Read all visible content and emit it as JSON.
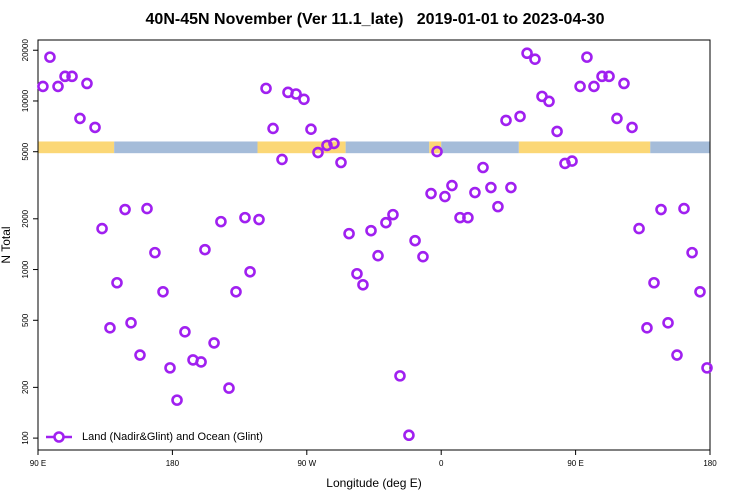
{
  "chart_data": {
    "type": "scatter",
    "title": "40N-45N November (Ver 11.1_late)   2019-01-01 to 2023-04-30",
    "xlabel": "Longitude (deg E)",
    "ylabel": "N Total",
    "xlim": [
      90,
      540
    ],
    "xticks": [
      {
        "value": 90,
        "label": "90 E"
      },
      180,
      {
        "value": 270,
        "label": "90 W"
      },
      {
        "value": 360,
        "label": "0"
      },
      {
        "value": 450,
        "label": "90 E"
      },
      {
        "value": 540,
        "label": "180"
      }
    ],
    "ylim": [
      85,
      23000
    ],
    "log_y": true,
    "yticks": [
      100,
      200,
      500,
      1000,
      2000,
      5000,
      10000,
      20000
    ],
    "legend": "bottom-left",
    "band_ylim": [
      4900,
      5750
    ],
    "band": [
      {
        "x0": 90,
        "x1": 141,
        "color": "#fbd776"
      },
      {
        "x0": 141,
        "x1": 237,
        "color": "#a5bcd9"
      },
      {
        "x0": 237,
        "x1": 296,
        "color": "#fbd776"
      },
      {
        "x0": 296,
        "x1": 352,
        "color": "#a5bcd9"
      },
      {
        "x0": 352,
        "x1": 360,
        "color": "#fbd776"
      },
      {
        "x0": 360,
        "x1": 412,
        "color": "#a5bcd9"
      },
      {
        "x0": 412,
        "x1": 500,
        "color": "#fbd776"
      },
      {
        "x0": 500,
        "x1": 540,
        "color": "#a5bcd9"
      }
    ],
    "series": [
      {
        "name": "Land (Nadir&Glint) and Ocean (Glint)",
        "color": "#a020f0",
        "x": [
          93.3,
          98.0,
          103.4,
          108.1,
          112.8,
          118.1,
          122.8,
          128.2,
          132.9,
          138.2,
          142.9,
          148.3,
          152.3,
          158.3,
          163.0,
          168.3,
          173.7,
          178.4,
          183.1,
          188.4,
          193.8,
          199.2,
          201.8,
          207.9,
          212.5,
          217.9,
          222.6,
          228.6,
          232.0,
          238.0,
          242.7,
          247.4,
          253.4,
          257.4,
          262.8,
          268.1,
          272.8,
          277.5,
          283.5,
          288.2,
          292.9,
          298.3,
          303.6,
          307.6,
          313.0,
          317.7,
          323.0,
          327.7,
          332.4,
          338.4,
          342.5,
          347.8,
          353.2,
          357.2,
          362.5,
          367.2,
          372.6,
          377.9,
          382.6,
          388.0,
          393.3,
          398.0,
          403.4,
          406.7,
          412.8,
          417.5,
          422.8,
          427.5,
          432.2,
          437.6,
          442.9,
          447.6,
          453.0,
          457.6,
          462.3,
          467.7,
          472.4,
          477.7,
          482.4,
          487.8,
          492.5,
          497.8,
          502.5,
          507.2,
          511.9,
          517.9,
          522.6,
          528.0,
          533.3,
          538.0
        ],
        "values": [
          12200,
          18200,
          12200,
          14000,
          14000,
          7880,
          12700,
          6970,
          1750,
          451,
          835,
          2270,
          483,
          311,
          2300,
          1260,
          738,
          261,
          168,
          427,
          291,
          283,
          1312,
          367,
          1924,
          198,
          738,
          2032,
          970,
          1980,
          11880,
          6870,
          4500,
          11250,
          11000,
          10230,
          6800,
          4945,
          5450,
          5600,
          4315,
          1633,
          944,
          812,
          1701,
          1208,
          1897,
          2117,
          234,
          104,
          1484,
          1192,
          2824,
          5010,
          2710,
          3150,
          2032,
          2032,
          2863,
          4030,
          3065,
          2362,
          7670,
          3065,
          8100,
          19200,
          17700,
          10650,
          9950,
          6600,
          4260,
          4400,
          12200,
          18200,
          12200,
          14000,
          14000,
          7880,
          12700,
          6970,
          1750,
          451,
          835,
          2270,
          483,
          311,
          2300,
          1260,
          738,
          261
        ]
      }
    ]
  }
}
